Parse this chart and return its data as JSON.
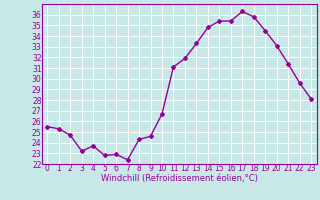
{
  "x": [
    0,
    1,
    2,
    3,
    4,
    5,
    6,
    7,
    8,
    9,
    10,
    11,
    12,
    13,
    14,
    15,
    16,
    17,
    18,
    19,
    20,
    21,
    22,
    23
  ],
  "y": [
    25.5,
    25.3,
    24.7,
    23.2,
    23.7,
    22.8,
    22.9,
    22.4,
    24.3,
    24.6,
    26.7,
    31.1,
    31.9,
    33.3,
    34.8,
    35.4,
    35.4,
    36.3,
    35.8,
    34.5,
    33.1,
    31.4,
    29.6,
    28.1
  ],
  "line_color": "#990099",
  "marker": "D",
  "markersize": 2,
  "linewidth": 1.0,
  "xlabel": "Windchill (Refroidissement éolien,°C)",
  "ylim": [
    22,
    37
  ],
  "xlim": [
    -0.5,
    23.5
  ],
  "yticks": [
    22,
    23,
    24,
    25,
    26,
    27,
    28,
    29,
    30,
    31,
    32,
    33,
    34,
    35,
    36
  ],
  "xticks": [
    0,
    1,
    2,
    3,
    4,
    5,
    6,
    7,
    8,
    9,
    10,
    11,
    12,
    13,
    14,
    15,
    16,
    17,
    18,
    19,
    20,
    21,
    22,
    23
  ],
  "bg_color": "#c8e8e8",
  "grid_color": "#ffffff",
  "tick_label_color": "#990099",
  "xlabel_color": "#990099",
  "xlabel_fontsize": 6,
  "tick_fontsize": 5.5
}
